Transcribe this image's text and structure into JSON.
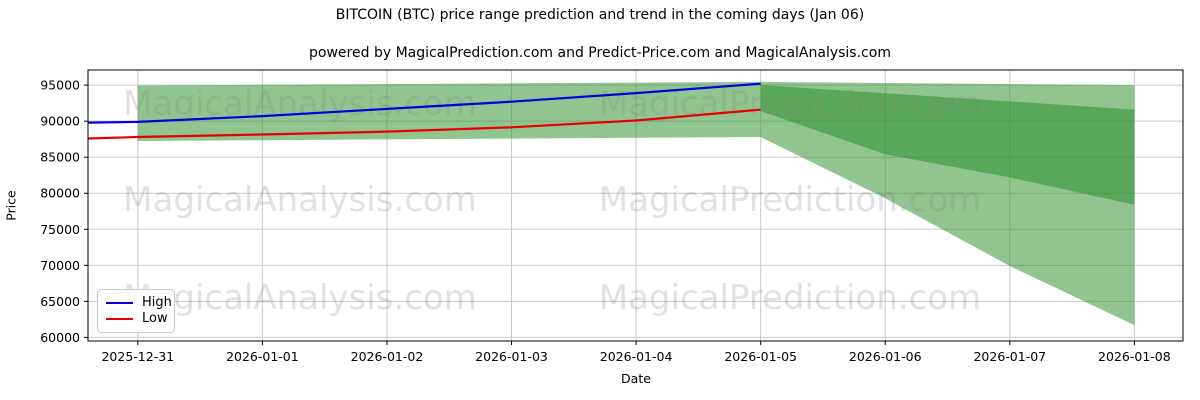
{
  "chart_data": {
    "type": "line",
    "title": "BITCOIN (BTC) price range prediction and trend in the coming days (Jan 06)",
    "subtitle": "powered by MagicalPrediction.com and Predict-Price.com and MagicalAnalysis.com",
    "xlabel": "Date",
    "ylabel": "Price",
    "x_labels": [
      "2025-12-31",
      "2026-01-01",
      "2026-01-02",
      "2026-01-03",
      "2026-01-04",
      "2026-01-05",
      "2026-01-06",
      "2026-01-07",
      "2026-01-08"
    ],
    "yticks": [
      60000,
      65000,
      70000,
      75000,
      80000,
      85000,
      90000,
      95000
    ],
    "ylim": [
      59500,
      97100
    ],
    "grid": true,
    "grid_color": "#c9c9c9",
    "band_color": "rgba(34,139,34,0.5)",
    "series": [
      {
        "name": "High",
        "color": "#0000dd",
        "x": [
          -0.4,
          0,
          1,
          2,
          3,
          4,
          5
        ],
        "values": [
          89800,
          89900,
          90700,
          91700,
          92700,
          93900,
          95200
        ]
      },
      {
        "name": "Low",
        "color": "#e80000",
        "x": [
          -0.4,
          0,
          1,
          2,
          3,
          4,
          5
        ],
        "values": [
          87600,
          87800,
          88150,
          88550,
          89150,
          90100,
          91600
        ]
      }
    ],
    "bands": [
      {
        "name": "history-range",
        "x": [
          0,
          1,
          2,
          3,
          4,
          5
        ],
        "top": [
          94950,
          95050,
          95150,
          95250,
          95350,
          95450
        ],
        "bottom": [
          87250,
          87360,
          87470,
          87580,
          87690,
          87800
        ]
      },
      {
        "name": "forecast-outer-range",
        "x": [
          5,
          6,
          7,
          8
        ],
        "top": [
          95450,
          95300,
          95150,
          95000
        ],
        "bottom": [
          87800,
          79300,
          69900,
          61700
        ]
      },
      {
        "name": "forecast-inner-range",
        "x": [
          5,
          6,
          7,
          8
        ],
        "top": [
          95000,
          93870,
          92740,
          91600
        ],
        "bottom": [
          91400,
          85400,
          82200,
          78400
        ]
      }
    ],
    "legend": {
      "position": "lower left",
      "entries": [
        {
          "label": "High",
          "color": "#0000dd"
        },
        {
          "label": "Low",
          "color": "#e80000"
        }
      ]
    },
    "watermarks": {
      "left_text": "MagicalAnalysis.com",
      "right_text": "MagicalPrediction.com",
      "color": "rgba(128,128,128,0.24)"
    }
  }
}
